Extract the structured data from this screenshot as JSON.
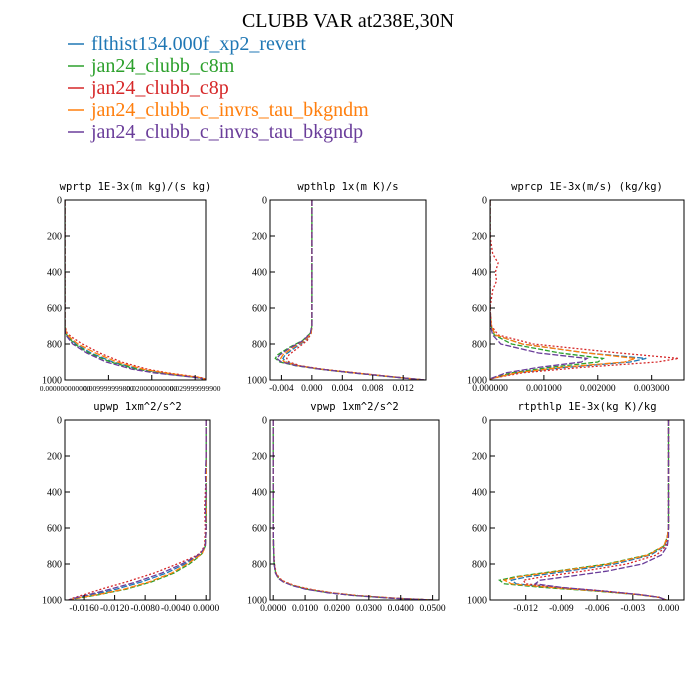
{
  "title": "CLUBB VAR at238E,30N",
  "legend": [
    {
      "label": "flthist134.000f_xp2_revert",
      "color": "#1f77b4"
    },
    {
      "label": "jan24_clubb_c8m",
      "color": "#2ca02c"
    },
    {
      "label": "jan24_clubb_c8p",
      "color": "#d62728"
    },
    {
      "label": "jan24_clubb_c_invrs_tau_bkgndm",
      "color": "#ff7f0e"
    },
    {
      "label": "jan24_clubb_c_invrs_tau_bkgndp",
      "color": "#6a3d9a"
    }
  ],
  "chart_data": [
    {
      "type": "line",
      "title": "wprtp  1E-3x(m kg)/(s kg)",
      "xlim": [
        0.0,
        0.0325
      ],
      "ylim": [
        1000,
        0
      ],
      "xticks": [
        0.0,
        0.01,
        0.02,
        0.03
      ],
      "xtick_labels": [
        "0.000000000000",
        "0.009999999800",
        "0.020000000000",
        "0.029999999900"
      ],
      "yticks": [
        0,
        200,
        400,
        600,
        800,
        1000
      ],
      "y": [
        0,
        300,
        600,
        700,
        740,
        760,
        800,
        850,
        900,
        940,
        960,
        975,
        985,
        992,
        1000
      ],
      "series": [
        {
          "name": "flthist134.000f_xp2_revert",
          "values": [
            0,
            0,
            0,
            0,
            0.0002,
            0.0008,
            0.0025,
            0.006,
            0.011,
            0.017,
            0.022,
            0.027,
            0.0305,
            0.032,
            0.032
          ]
        },
        {
          "name": "jan24_clubb_c8m",
          "values": [
            0,
            0,
            0,
            0,
            0.0002,
            0.0007,
            0.0022,
            0.0055,
            0.0105,
            0.0165,
            0.0215,
            0.0265,
            0.03,
            0.0318,
            0.0318
          ]
        },
        {
          "name": "jan24_clubb_c8p",
          "values": [
            0,
            0,
            0,
            0,
            0.0005,
            0.0015,
            0.004,
            0.008,
            0.013,
            0.019,
            0.0235,
            0.028,
            0.031,
            0.0322,
            0.0322
          ]
        },
        {
          "name": "jan24_clubb_c_invrs_tau_bkgndm",
          "values": [
            0,
            0,
            0,
            0,
            0.0003,
            0.001,
            0.003,
            0.007,
            0.012,
            0.018,
            0.023,
            0.0275,
            0.0308,
            0.032,
            0.032
          ]
        },
        {
          "name": "jan24_clubb_c_invrs_tau_bkgndp",
          "values": [
            0,
            0,
            0,
            0,
            0.0001,
            0.0005,
            0.0018,
            0.005,
            0.0095,
            0.0155,
            0.0205,
            0.026,
            0.0298,
            0.0316,
            0.0316
          ]
        }
      ]
    },
    {
      "type": "line",
      "title": "wpthlp  1x(m K)/s",
      "xlim": [
        -0.0055,
        0.015
      ],
      "ylim": [
        1000,
        0
      ],
      "xticks": [
        -0.004,
        0.0,
        0.004,
        0.008,
        0.012
      ],
      "xtick_labels": [
        "-0.004",
        "0.000",
        "0.004",
        "0.008",
        "0.012"
      ],
      "yticks": [
        0,
        200,
        400,
        600,
        800,
        1000
      ],
      "y": [
        0,
        200,
        400,
        600,
        700,
        740,
        780,
        820,
        860,
        880,
        900,
        920,
        940,
        960,
        980,
        1000
      ],
      "series": [
        {
          "name": "flthist134.000f_xp2_revert",
          "values": [
            0,
            0,
            0,
            0,
            0,
            -0.0001,
            -0.0008,
            -0.0022,
            -0.0035,
            -0.0038,
            -0.0034,
            -0.0018,
            0.0012,
            0.0055,
            0.01,
            0.0148
          ]
        },
        {
          "name": "jan24_clubb_c8m",
          "values": [
            0,
            0,
            0,
            0,
            0,
            -0.0002,
            -0.0012,
            -0.003,
            -0.0045,
            -0.0048,
            -0.0042,
            -0.0022,
            0.001,
            0.0052,
            0.0098,
            0.0148
          ]
        },
        {
          "name": "jan24_clubb_c8p",
          "values": [
            0,
            0,
            0,
            0,
            0,
            -0.0001,
            -0.0006,
            -0.0018,
            -0.003,
            -0.0033,
            -0.003,
            -0.0016,
            0.0014,
            0.0058,
            0.0102,
            0.0148
          ]
        },
        {
          "name": "jan24_clubb_c_invrs_tau_bkgndm",
          "values": [
            0,
            0,
            0,
            0,
            0,
            -0.0001,
            -0.0009,
            -0.0025,
            -0.0038,
            -0.0041,
            -0.0036,
            -0.0019,
            0.0012,
            0.0055,
            0.01,
            0.0148
          ]
        },
        {
          "name": "jan24_clubb_c_invrs_tau_bkgndp",
          "values": [
            0,
            0,
            0,
            0,
            0,
            -0.0002,
            -0.0011,
            -0.0028,
            -0.0042,
            -0.0046,
            -0.004,
            -0.0021,
            0.0011,
            0.0053,
            0.0099,
            0.0148
          ]
        }
      ]
    },
    {
      "type": "line",
      "title": "wprcp  1E-3x(m/s) (kg/kg)",
      "xlim": [
        0.0,
        0.0036
      ],
      "ylim": [
        1000,
        0
      ],
      "xticks": [
        0.0,
        0.001,
        0.002,
        0.003
      ],
      "xtick_labels": [
        "0.000000",
        "0.001000",
        "0.002000",
        "0.003000"
      ],
      "yticks": [
        0,
        200,
        400,
        600,
        800,
        1000
      ],
      "y": [
        0,
        200,
        300,
        350,
        400,
        450,
        500,
        600,
        700,
        750,
        800,
        850,
        880,
        900,
        930,
        960,
        990,
        1000
      ],
      "series": [
        {
          "name": "flthist134.000f_xp2_revert",
          "values": [
            0,
            0,
            0,
            0,
            0,
            0,
            0,
            0,
            2e-05,
            0.0001,
            0.0006,
            0.0018,
            0.0029,
            0.0026,
            0.0014,
            0.0005,
            5e-05,
            0
          ]
        },
        {
          "name": "jan24_clubb_c8m",
          "values": [
            0,
            0,
            0,
            0,
            0,
            0,
            0,
            0,
            2e-05,
            8e-05,
            0.0004,
            0.0013,
            0.0021,
            0.002,
            0.0011,
            0.0004,
            4e-05,
            0
          ]
        },
        {
          "name": "jan24_clubb_c8p",
          "values": [
            0,
            0,
            5e-05,
            0.00015,
            0.0001,
            0.00012,
            5e-05,
            0,
            3e-05,
            0.00015,
            0.0008,
            0.0024,
            0.0035,
            0.0031,
            0.0017,
            0.0006,
            6e-05,
            0
          ]
        },
        {
          "name": "jan24_clubb_c_invrs_tau_bkgndm",
          "values": [
            0,
            0,
            0,
            0,
            0,
            0,
            0,
            0,
            2e-05,
            0.0001,
            0.0006,
            0.0018,
            0.0027,
            0.0025,
            0.0013,
            0.0005,
            5e-05,
            0
          ]
        },
        {
          "name": "jan24_clubb_c_invrs_tau_bkgndp",
          "values": [
            0,
            0,
            0,
            0,
            0,
            0,
            0,
            0,
            1e-05,
            5e-05,
            0.0002,
            0.0009,
            0.0018,
            0.0017,
            0.0009,
            0.0003,
            3e-05,
            0
          ]
        }
      ]
    },
    {
      "type": "line",
      "title": "upwp  1xm^2/s^2",
      "xlim": [
        -0.0185,
        0.0005
      ],
      "ylim": [
        1000,
        0
      ],
      "xticks": [
        -0.016,
        -0.012,
        -0.008,
        -0.004,
        0.0
      ],
      "xtick_labels": [
        "-0.0160",
        "-0.0120",
        "-0.0080",
        "-0.0040",
        "0.0000"
      ],
      "yticks": [
        0,
        200,
        400,
        600,
        800,
        1000
      ],
      "y": [
        0,
        200,
        300,
        400,
        500,
        600,
        700,
        740,
        760,
        800,
        850,
        900,
        940,
        970,
        990,
        1000
      ],
      "series": [
        {
          "name": "flthist134.000f_xp2_revert",
          "values": [
            0,
            0,
            0,
            0,
            0,
            0,
            -0.0001,
            -0.0006,
            -0.0012,
            -0.0028,
            -0.0052,
            -0.0085,
            -0.0118,
            -0.0148,
            -0.0172,
            -0.018
          ]
        },
        {
          "name": "jan24_clubb_c8m",
          "values": [
            0,
            0,
            0,
            0,
            0,
            0,
            -0.0001,
            -0.0005,
            -0.001,
            -0.0022,
            -0.0042,
            -0.0072,
            -0.0105,
            -0.014,
            -0.0168,
            -0.018
          ]
        },
        {
          "name": "jan24_clubb_c8p",
          "values": [
            0,
            0,
            0,
            -0.0001,
            -0.0002,
            -0.0001,
            -0.0002,
            -0.0008,
            -0.0016,
            -0.0038,
            -0.0068,
            -0.0105,
            -0.0138,
            -0.016,
            -0.0175,
            -0.018
          ]
        },
        {
          "name": "jan24_clubb_c_invrs_tau_bkgndm",
          "values": [
            0,
            0,
            0,
            0,
            0,
            0,
            -0.0001,
            -0.0005,
            -0.0011,
            -0.0025,
            -0.0045,
            -0.0075,
            -0.0108,
            -0.0142,
            -0.017,
            -0.018
          ]
        },
        {
          "name": "jan24_clubb_c_invrs_tau_bkgndp",
          "values": [
            0,
            0,
            -0.0001,
            0,
            -0.0001,
            0,
            -0.0001,
            -0.0007,
            -0.0014,
            -0.0032,
            -0.0058,
            -0.0092,
            -0.0126,
            -0.0154,
            -0.0173,
            -0.018
          ]
        }
      ]
    },
    {
      "type": "line",
      "title": "vpwp  1xm^2/s^2",
      "xlim": [
        -0.001,
        0.052
      ],
      "ylim": [
        1000,
        0
      ],
      "xticks": [
        0.0,
        0.01,
        0.02,
        0.03,
        0.04,
        0.05
      ],
      "xtick_labels": [
        "0.0000",
        "0.0100",
        "0.0200",
        "0.0300",
        "0.0400",
        "0.0500"
      ],
      "yticks": [
        0,
        200,
        400,
        600,
        800,
        1000
      ],
      "y": [
        0,
        200,
        400,
        600,
        700,
        800,
        850,
        880,
        900,
        920,
        940,
        960,
        975,
        990,
        1000
      ],
      "series": [
        {
          "name": "flthist134.000f_xp2_revert",
          "values": [
            0,
            0,
            0,
            0,
            0.0001,
            0.0003,
            0.0008,
            0.0018,
            0.0035,
            0.0065,
            0.011,
            0.018,
            0.026,
            0.038,
            0.05
          ]
        },
        {
          "name": "jan24_clubb_c8m",
          "values": [
            0,
            0,
            0,
            0,
            0.0001,
            0.0003,
            0.0008,
            0.0017,
            0.0033,
            0.0062,
            0.0105,
            0.0175,
            0.0255,
            0.0375,
            0.05
          ]
        },
        {
          "name": "jan24_clubb_c8p",
          "values": [
            0,
            0,
            0,
            0,
            0.0001,
            0.0004,
            0.0009,
            0.002,
            0.0038,
            0.0068,
            0.0115,
            0.0185,
            0.0265,
            0.0385,
            0.05
          ]
        },
        {
          "name": "jan24_clubb_c_invrs_tau_bkgndm",
          "values": [
            0,
            0,
            0,
            0,
            0.0001,
            0.0003,
            0.0008,
            0.0018,
            0.0035,
            0.0065,
            0.011,
            0.018,
            0.026,
            0.038,
            0.05
          ]
        },
        {
          "name": "jan24_clubb_c_invrs_tau_bkgndp",
          "values": [
            0,
            0,
            0,
            0,
            0.0001,
            0.0003,
            0.0007,
            0.0016,
            0.0032,
            0.006,
            0.0102,
            0.0172,
            0.025,
            0.037,
            0.05
          ]
        }
      ]
    },
    {
      "type": "line",
      "title": "rtpthlp  1E-3x(kg K)/kg",
      "xlim": [
        -0.015,
        0.0013
      ],
      "ylim": [
        1000,
        0
      ],
      "xticks": [
        -0.012,
        -0.009,
        -0.006,
        -0.003,
        0.0
      ],
      "xtick_labels": [
        "-0.012",
        "-0.009",
        "-0.006",
        "-0.003",
        "0.000"
      ],
      "yticks": [
        0,
        200,
        400,
        600,
        800,
        1000
      ],
      "y": [
        0,
        200,
        400,
        600,
        650,
        700,
        750,
        800,
        840,
        870,
        890,
        910,
        930,
        950,
        970,
        985,
        1000
      ],
      "series": [
        {
          "name": "flthist134.000f_xp2_revert",
          "values": [
            0,
            0,
            0,
            0,
            -0.0001,
            -0.0003,
            -0.0015,
            -0.0045,
            -0.0085,
            -0.0118,
            -0.0132,
            -0.0128,
            -0.0098,
            -0.0058,
            -0.0025,
            -0.0008,
            -0.0002
          ]
        },
        {
          "name": "jan24_clubb_c8m",
          "values": [
            0,
            0,
            0,
            0,
            -0.0001,
            -0.0004,
            -0.0018,
            -0.0052,
            -0.0095,
            -0.0128,
            -0.0142,
            -0.0138,
            -0.0106,
            -0.0062,
            -0.0026,
            -0.0008,
            -0.0002
          ]
        },
        {
          "name": "jan24_clubb_c8p",
          "values": [
            0,
            0,
            0,
            0,
            -0.0001,
            -0.0002,
            -0.001,
            -0.0035,
            -0.0072,
            -0.0105,
            -0.0122,
            -0.012,
            -0.0092,
            -0.0054,
            -0.0024,
            -0.0008,
            -0.0002
          ]
        },
        {
          "name": "jan24_clubb_c_invrs_tau_bkgndm",
          "values": [
            0,
            0,
            0,
            0,
            -0.0001,
            -0.0004,
            -0.0017,
            -0.005,
            -0.0092,
            -0.0125,
            -0.0138,
            -0.0132,
            -0.01,
            -0.0059,
            -0.0025,
            -0.0008,
            -0.0002
          ]
        },
        {
          "name": "jan24_clubb_c_invrs_tau_bkgndp",
          "values": [
            0,
            0,
            0,
            0,
            0,
            -0.0001,
            -0.0006,
            -0.0022,
            -0.0052,
            -0.0085,
            -0.0108,
            -0.0112,
            -0.009,
            -0.0055,
            -0.0024,
            -0.0008,
            -0.0002
          ]
        }
      ]
    }
  ]
}
